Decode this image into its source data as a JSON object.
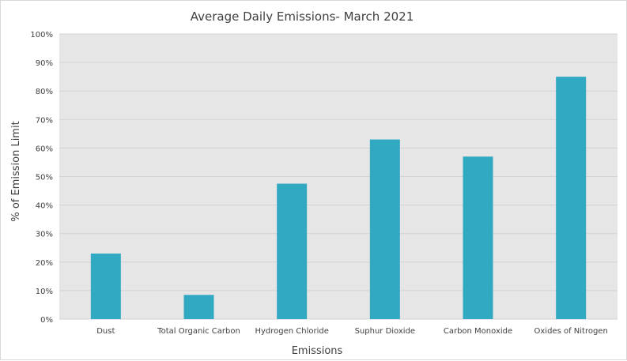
{
  "chart_data": {
    "type": "bar",
    "title": "Average Daily Emissions- March 2021",
    "xlabel": "Emissions",
    "ylabel": "% of Emission Limit",
    "categories": [
      "Dust",
      "Total Organic Carbon",
      "Hydrogen Chloride",
      "Suphur Dioxide",
      "Carbon  Monoxide",
      "Oxides of Nitrogen"
    ],
    "values": [
      23,
      8.5,
      47.5,
      63,
      57,
      85
    ],
    "ylim": [
      0,
      100
    ],
    "yticks": [
      "0%",
      "10%",
      "20%",
      "30%",
      "40%",
      "50%",
      "60%",
      "70%",
      "80%",
      "90%",
      "100%"
    ],
    "grid": true,
    "legend": "none",
    "colors": {
      "bar": "#31a9c3",
      "plot_background": "#e6e6e6",
      "gridline": "#d2d2d2",
      "text": "#404040"
    }
  }
}
